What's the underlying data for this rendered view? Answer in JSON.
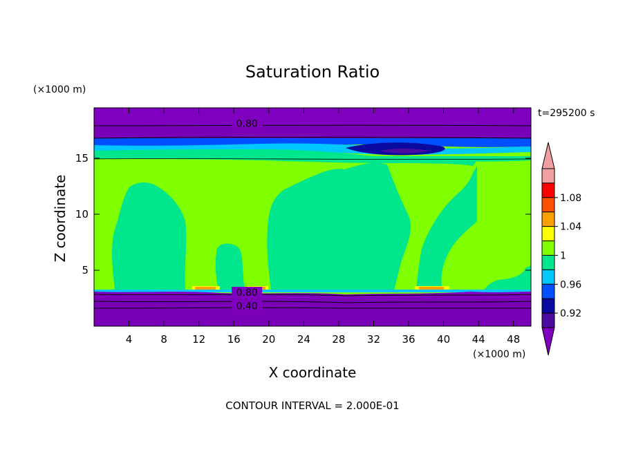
{
  "chart_data": {
    "type": "heatmap",
    "title": "Saturation Ratio",
    "xlabel": "X coordinate",
    "ylabel": "Z coordinate",
    "x_unit": "(×1000 m)",
    "y_unit": "(×1000 m)",
    "time_label": "t=295200 s",
    "footer": "CONTOUR INTERVAL = 2.000E-01",
    "xlim": [
      0,
      50
    ],
    "ylim": [
      0,
      19.5
    ],
    "x_ticks": [
      4,
      8,
      12,
      16,
      20,
      24,
      28,
      32,
      36,
      40,
      44,
      48
    ],
    "y_ticks": [
      5,
      10,
      15
    ],
    "contour_labels": [
      {
        "text": "0.80",
        "x": 17.5,
        "y": 18.0
      },
      {
        "text": "0.80",
        "x": 17.5,
        "y": 2.9
      },
      {
        "text": "0.40",
        "x": 17.5,
        "y": 1.7
      }
    ],
    "colorbar": {
      "tick_labels": [
        "1.08",
        "1.04",
        "1",
        "0.96",
        "0.92"
      ],
      "levels": [
        0.9,
        0.92,
        0.94,
        0.96,
        0.98,
        1.0,
        1.02,
        1.04,
        1.06,
        1.08,
        1.1
      ],
      "colors": [
        "#4b0aa0",
        "#0a0aa0",
        "#0050ff",
        "#00c8ff",
        "#00e68c",
        "#80ff00",
        "#ffff00",
        "#ffa000",
        "#ff5000",
        "#ff0000",
        "#f0a0a0"
      ],
      "under_color": "#8000c0",
      "over_color": "#f0a0a0"
    },
    "regions": [
      {
        "level": "<0.90",
        "description": "lower layer z<3.3 and upper layer z>17"
      },
      {
        "level": "0.98-1.00",
        "description": "cloud columns near x=3-9, 14-17, 20-34, 36-43"
      },
      {
        "level": "1.00-1.02",
        "description": "bulk of mid-troposphere 3.5<z<15.5"
      },
      {
        "level": "0.92-0.96",
        "description": "thin band near z=16.5, x=30-39"
      }
    ]
  }
}
